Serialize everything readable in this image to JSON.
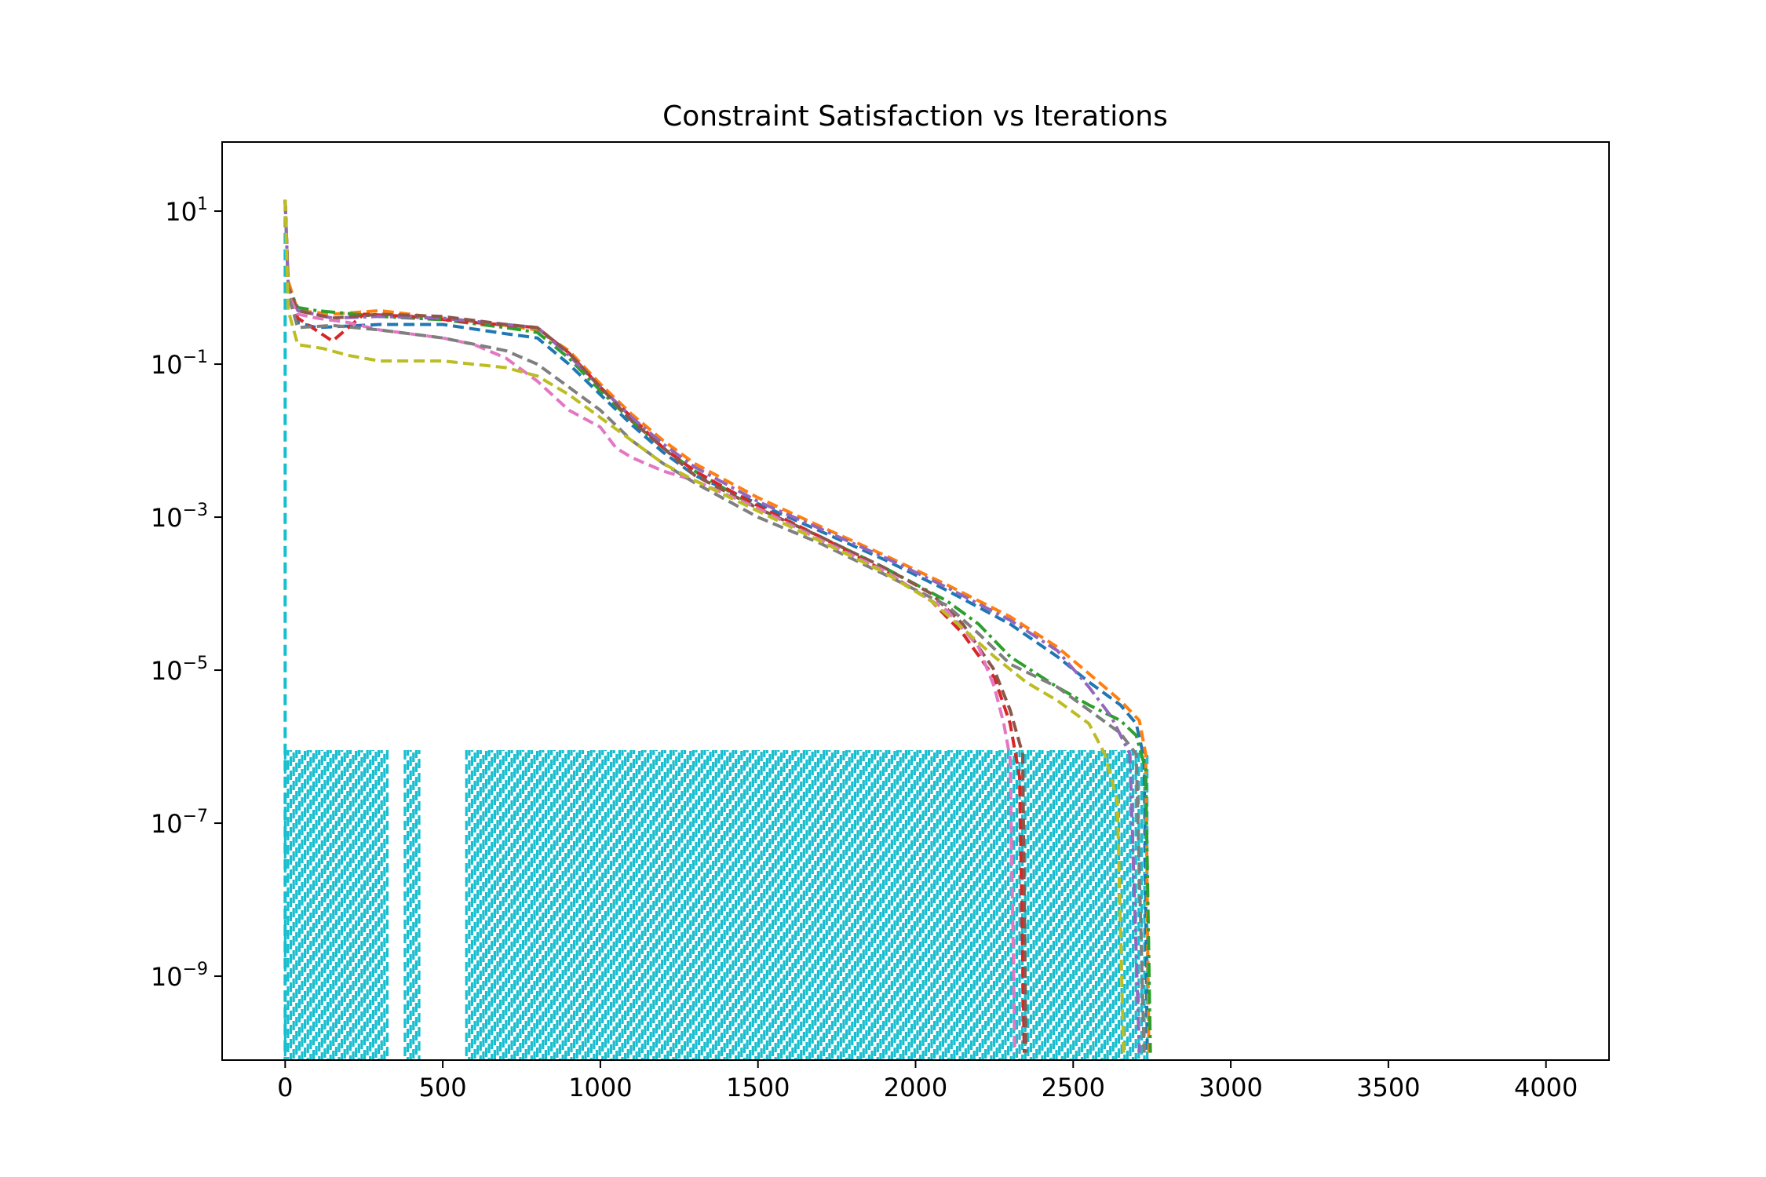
{
  "chart_data": {
    "type": "line",
    "title": "Constraint Satisfaction vs Iterations",
    "xlabel": "",
    "ylabel": "",
    "x_scale": "linear",
    "y_scale": "log",
    "xlim": [
      -200,
      4200
    ],
    "ylim": [
      8e-11,
      80
    ],
    "x_ticks": [
      0,
      500,
      1000,
      1500,
      2000,
      2500,
      3000,
      3500,
      4000
    ],
    "y_ticks": [
      {
        "value": 10,
        "base": "10",
        "exp": "1"
      },
      {
        "value": 0.1,
        "base": "10",
        "exp": "−1"
      },
      {
        "value": 0.001,
        "base": "10",
        "exp": "−3"
      },
      {
        "value": 1e-05,
        "base": "10",
        "exp": "−5"
      },
      {
        "value": 1e-07,
        "base": "10",
        "exp": "−7"
      },
      {
        "value": 1e-09,
        "base": "10",
        "exp": "−9"
      }
    ],
    "grid": false,
    "legend": "none",
    "series": [
      {
        "color": "#1f77b4",
        "dash": "dashed",
        "points": [
          [
            0,
            14
          ],
          [
            10,
            0.8
          ],
          [
            40,
            0.35
          ],
          [
            100,
            0.3
          ],
          [
            300,
            0.33
          ],
          [
            500,
            0.33
          ],
          [
            700,
            0.25
          ],
          [
            800,
            0.22
          ],
          [
            900,
            0.1
          ],
          [
            1000,
            0.04
          ],
          [
            1100,
            0.016
          ],
          [
            1200,
            0.007
          ],
          [
            1300,
            0.0035
          ],
          [
            1500,
            0.0015
          ],
          [
            1700,
            0.00065
          ],
          [
            1900,
            0.00028
          ],
          [
            2100,
            0.00011
          ],
          [
            2300,
            4e-05
          ],
          [
            2450,
            1.5e-05
          ],
          [
            2550,
            7e-06
          ],
          [
            2650,
            3.5e-06
          ],
          [
            2700,
            2e-06
          ],
          [
            2725,
            7e-07
          ],
          [
            2735,
            1e-10
          ]
        ]
      },
      {
        "color": "#ff7f0e",
        "dash": "dashed",
        "points": [
          [
            0,
            14
          ],
          [
            10,
            1.2
          ],
          [
            40,
            0.5
          ],
          [
            150,
            0.45
          ],
          [
            300,
            0.5
          ],
          [
            500,
            0.4
          ],
          [
            700,
            0.32
          ],
          [
            800,
            0.28
          ],
          [
            900,
            0.15
          ],
          [
            1000,
            0.055
          ],
          [
            1100,
            0.022
          ],
          [
            1200,
            0.01
          ],
          [
            1300,
            0.005
          ],
          [
            1500,
            0.0018
          ],
          [
            1700,
            0.00075
          ],
          [
            1900,
            0.00032
          ],
          [
            2100,
            0.00013
          ],
          [
            2300,
            5e-05
          ],
          [
            2450,
            2e-05
          ],
          [
            2550,
            9e-06
          ],
          [
            2650,
            4e-06
          ],
          [
            2710,
            2.2e-06
          ],
          [
            2730,
            8e-07
          ],
          [
            2740,
            1e-10
          ]
        ]
      },
      {
        "color": "#2ca02c",
        "dash": "dashdot",
        "points": [
          [
            0,
            14
          ],
          [
            10,
            1.0
          ],
          [
            40,
            0.55
          ],
          [
            100,
            0.5
          ],
          [
            300,
            0.42
          ],
          [
            500,
            0.38
          ],
          [
            700,
            0.3
          ],
          [
            800,
            0.26
          ],
          [
            900,
            0.12
          ],
          [
            1000,
            0.045
          ],
          [
            1100,
            0.018
          ],
          [
            1200,
            0.008
          ],
          [
            1300,
            0.004
          ],
          [
            1500,
            0.0013
          ],
          [
            1700,
            0.00055
          ],
          [
            1900,
            0.00022
          ],
          [
            2100,
            8e-05
          ],
          [
            2200,
            4e-05
          ],
          [
            2300,
            1.5e-05
          ],
          [
            2450,
            6e-06
          ],
          [
            2550,
            3.5e-06
          ],
          [
            2650,
            2.2e-06
          ],
          [
            2700,
            1.4e-06
          ],
          [
            2730,
            5e-07
          ],
          [
            2745,
            1e-10
          ]
        ]
      },
      {
        "color": "#d62728",
        "dash": "dashed",
        "points": [
          [
            0,
            14
          ],
          [
            10,
            0.9
          ],
          [
            40,
            0.4
          ],
          [
            150,
            0.2
          ],
          [
            250,
            0.45
          ],
          [
            400,
            0.42
          ],
          [
            600,
            0.35
          ],
          [
            800,
            0.3
          ],
          [
            900,
            0.14
          ],
          [
            1000,
            0.05
          ],
          [
            1100,
            0.02
          ],
          [
            1200,
            0.008
          ],
          [
            1300,
            0.004
          ],
          [
            1500,
            0.0014
          ],
          [
            1700,
            0.00055
          ],
          [
            1900,
            0.0002
          ],
          [
            2050,
            8e-05
          ],
          [
            2150,
            3e-05
          ],
          [
            2250,
            8e-06
          ],
          [
            2300,
            2e-06
          ],
          [
            2330,
            4e-07
          ],
          [
            2345,
            1e-10
          ]
        ]
      },
      {
        "color": "#9467bd",
        "dash": "dashdot",
        "points": [
          [
            0,
            14
          ],
          [
            10,
            1.0
          ],
          [
            40,
            0.5
          ],
          [
            150,
            0.4
          ],
          [
            300,
            0.42
          ],
          [
            500,
            0.4
          ],
          [
            700,
            0.33
          ],
          [
            800,
            0.3
          ],
          [
            900,
            0.13
          ],
          [
            1000,
            0.05
          ],
          [
            1100,
            0.02
          ],
          [
            1200,
            0.009
          ],
          [
            1300,
            0.0045
          ],
          [
            1500,
            0.0016
          ],
          [
            1700,
            0.0007
          ],
          [
            1900,
            0.0003
          ],
          [
            2100,
            0.00012
          ],
          [
            2300,
            4.5e-05
          ],
          [
            2450,
            1.8e-05
          ],
          [
            2550,
            6e-06
          ],
          [
            2620,
            2.5e-06
          ],
          [
            2680,
            8e-07
          ],
          [
            2710,
            1e-10
          ]
        ]
      },
      {
        "color": "#8c564b",
        "dash": "dashed",
        "points": [
          [
            0,
            14
          ],
          [
            10,
            1.0
          ],
          [
            40,
            0.5
          ],
          [
            150,
            0.4
          ],
          [
            300,
            0.45
          ],
          [
            500,
            0.42
          ],
          [
            700,
            0.33
          ],
          [
            800,
            0.3
          ],
          [
            900,
            0.14
          ],
          [
            1000,
            0.05
          ],
          [
            1100,
            0.018
          ],
          [
            1200,
            0.008
          ],
          [
            1300,
            0.0035
          ],
          [
            1500,
            0.0013
          ],
          [
            1700,
            0.00055
          ],
          [
            1900,
            0.00022
          ],
          [
            2050,
            0.0001
          ],
          [
            2150,
            4e-05
          ],
          [
            2250,
            1e-05
          ],
          [
            2300,
            3e-06
          ],
          [
            2340,
            8e-07
          ],
          [
            2350,
            1e-10
          ]
        ]
      },
      {
        "color": "#e377c2",
        "dash": "dashed",
        "points": [
          [
            0,
            14
          ],
          [
            10,
            0.8
          ],
          [
            40,
            0.45
          ],
          [
            100,
            0.4
          ],
          [
            200,
            0.35
          ],
          [
            300,
            0.28
          ],
          [
            500,
            0.22
          ],
          [
            600,
            0.18
          ],
          [
            700,
            0.12
          ],
          [
            800,
            0.06
          ],
          [
            900,
            0.025
          ],
          [
            1000,
            0.015
          ],
          [
            1050,
            0.008
          ],
          [
            1100,
            0.006
          ],
          [
            1200,
            0.004
          ],
          [
            1300,
            0.003
          ],
          [
            1500,
            0.0013
          ],
          [
            1700,
            0.0005
          ],
          [
            1900,
            0.0002
          ],
          [
            2100,
            6e-05
          ],
          [
            2200,
            2e-05
          ],
          [
            2250,
            6e-06
          ],
          [
            2280,
            2e-06
          ],
          [
            2300,
            7e-07
          ],
          [
            2315,
            1e-10
          ]
        ]
      },
      {
        "color": "#7f7f7f",
        "dash": "dashed",
        "points": [
          [
            0,
            14
          ],
          [
            10,
            0.8
          ],
          [
            40,
            0.3
          ],
          [
            150,
            0.32
          ],
          [
            300,
            0.28
          ],
          [
            500,
            0.22
          ],
          [
            700,
            0.15
          ],
          [
            800,
            0.1
          ],
          [
            900,
            0.05
          ],
          [
            1000,
            0.025
          ],
          [
            1100,
            0.01
          ],
          [
            1200,
            0.005
          ],
          [
            1300,
            0.0028
          ],
          [
            1500,
            0.001
          ],
          [
            1700,
            0.00045
          ],
          [
            1900,
            0.00018
          ],
          [
            2100,
            7e-05
          ],
          [
            2200,
            3e-05
          ],
          [
            2300,
            1.2e-05
          ],
          [
            2450,
            6e-06
          ],
          [
            2550,
            3e-06
          ],
          [
            2650,
            1.5e-06
          ],
          [
            2700,
            8e-07
          ],
          [
            2725,
            1e-10
          ]
        ]
      },
      {
        "color": "#bcbd22",
        "dash": "dashed",
        "points": [
          [
            0,
            14
          ],
          [
            10,
            0.5
          ],
          [
            40,
            0.18
          ],
          [
            120,
            0.16
          ],
          [
            200,
            0.13
          ],
          [
            300,
            0.11
          ],
          [
            500,
            0.11
          ],
          [
            700,
            0.09
          ],
          [
            800,
            0.07
          ],
          [
            900,
            0.04
          ],
          [
            1000,
            0.02
          ],
          [
            1100,
            0.01
          ],
          [
            1200,
            0.005
          ],
          [
            1300,
            0.003
          ],
          [
            1500,
            0.0012
          ],
          [
            1700,
            0.00048
          ],
          [
            1900,
            0.00019
          ],
          [
            2050,
            8e-05
          ],
          [
            2150,
            3.5e-05
          ],
          [
            2250,
            1.5e-05
          ],
          [
            2350,
            7e-06
          ],
          [
            2450,
            4e-06
          ],
          [
            2550,
            2e-06
          ],
          [
            2600,
            8e-07
          ],
          [
            2640,
            2e-07
          ],
          [
            2660,
            1e-10
          ]
        ]
      }
    ],
    "bursts": {
      "color": "#17becf",
      "spike_value": 14,
      "upper_value": 9e-07,
      "lower_value": 8e-11,
      "ranges": [
        [
          0,
          330
        ],
        [
          380,
          430
        ],
        [
          575,
          2740
        ]
      ],
      "step": 9
    }
  }
}
